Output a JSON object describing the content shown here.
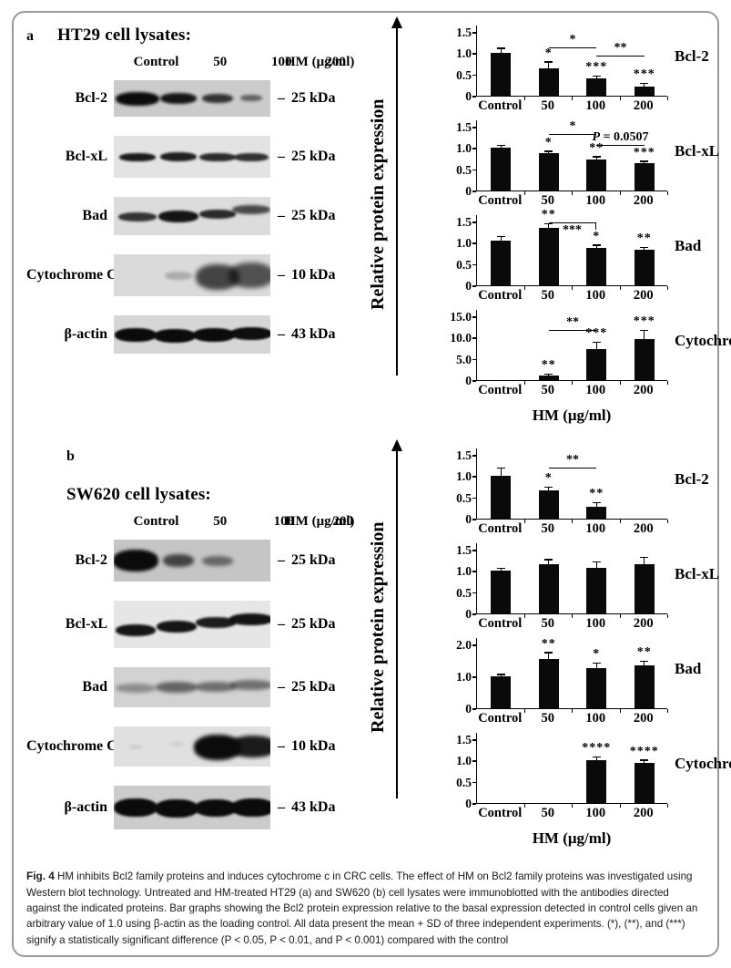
{
  "figure": {
    "caption_bold": "Fig. 4",
    "caption_text": " HM inhibits Bcl2 family proteins and induces cytochrome c in CRC cells. The effect of HM on Bcl2 family proteins was investigated using Western blot technology. Untreated and HM-treated HT29 (a) and SW620 (b) cell lysates were immunoblotted with the antibodies directed against the indicated proteins. Bar graphs showing the Bcl2 protein expression relative to the basal expression detected in control cells given an arbitrary value of 1.0 using β-actin as the loading control. All data present the mean + SD of three independent experiments. (*), (**), and (***) signify a statistically significant difference (P < 0.05, P < 0.01, and P < 0.001) compared with the control"
  },
  "panels": [
    {
      "letter": "a",
      "title": "HT29 cell lysates:",
      "lane_labels": [
        "Control",
        "50",
        "100",
        "200"
      ],
      "unit_label": "HM (μg/ml)",
      "ylabel": "Relative protein  expression",
      "xlabel": "HM (μg/ml)",
      "blots": [
        {
          "label": "Bcl-2",
          "kda": "25 kDa",
          "bg": "#cbcbcb",
          "h": 40,
          "bands": [
            {
              "x": 15,
              "w": 48,
              "h": 15,
              "o": 1.0,
              "blur": 1.5,
              "dy": 0
            },
            {
              "x": 41,
              "w": 40,
              "h": 12,
              "o": 0.95,
              "blur": 1.5,
              "dy": 0
            },
            {
              "x": 66,
              "w": 34,
              "h": 10,
              "o": 0.8,
              "blur": 1.5,
              "dy": 0
            },
            {
              "x": 88,
              "w": 24,
              "h": 7,
              "o": 0.55,
              "blur": 1.6,
              "dy": -1
            }
          ]
        },
        {
          "label": "Bcl-xL",
          "kda": "25 kDa",
          "bg": "#e3e3e3",
          "h": 46,
          "bands": [
            {
              "x": 15,
              "w": 40,
              "h": 9,
              "o": 0.92,
              "blur": 1.2,
              "dy": 0
            },
            {
              "x": 41,
              "w": 40,
              "h": 10,
              "o": 0.9,
              "blur": 1.2,
              "dy": 0
            },
            {
              "x": 66,
              "w": 40,
              "h": 9,
              "o": 0.85,
              "blur": 1.2,
              "dy": 0
            },
            {
              "x": 88,
              "w": 38,
              "h": 9,
              "o": 0.82,
              "blur": 1.2,
              "dy": 0
            }
          ]
        },
        {
          "label": "Bad",
          "kda": "25 kDa",
          "bg": "#dcdcdc",
          "h": 42,
          "bands": [
            {
              "x": 15,
              "w": 42,
              "h": 10,
              "o": 0.8,
              "blur": 1.4,
              "dy": 1
            },
            {
              "x": 41,
              "w": 44,
              "h": 13,
              "o": 0.95,
              "blur": 1.4,
              "dy": 0
            },
            {
              "x": 66,
              "w": 40,
              "h": 10,
              "o": 0.85,
              "blur": 1.4,
              "dy": -2
            },
            {
              "x": 88,
              "w": 42,
              "h": 10,
              "o": 0.7,
              "blur": 1.7,
              "dy": -7
            }
          ]
        },
        {
          "label": "Cytochrome C",
          "kda": "10 kDa",
          "bg": "#dadada",
          "h": 46,
          "bands": [
            {
              "x": 15,
              "w": 0,
              "h": 0,
              "o": 0,
              "blur": 0,
              "dy": 0
            },
            {
              "x": 41,
              "w": 30,
              "h": 9,
              "o": 0.22,
              "blur": 1.6,
              "dy": 0
            },
            {
              "x": 66,
              "w": 48,
              "h": 28,
              "o": 0.72,
              "blur": 2.6,
              "dy": 2
            },
            {
              "x": 88,
              "w": 50,
              "h": 28,
              "o": 0.66,
              "blur": 2.6,
              "dy": 0
            }
          ]
        },
        {
          "label": "β-actin",
          "kda": "43 kDa",
          "bg": "#d6d6d6",
          "h": 42,
          "bands": [
            {
              "x": 14,
              "w": 46,
              "h": 15,
              "o": 1.0,
              "blur": 1.0,
              "dy": 0
            },
            {
              "x": 39,
              "w": 46,
              "h": 15,
              "o": 1.0,
              "blur": 1.0,
              "dy": 1
            },
            {
              "x": 64,
              "w": 46,
              "h": 15,
              "o": 1.0,
              "blur": 1.0,
              "dy": 0
            },
            {
              "x": 88,
              "w": 46,
              "h": 14,
              "o": 0.98,
              "blur": 1.0,
              "dy": -1
            }
          ]
        }
      ]
    },
    {
      "letter": "b",
      "title": "SW620 cell lysates:",
      "lane_labels": [
        "Control",
        "50",
        "100",
        "200"
      ],
      "unit_label": "HM (μg/ml)",
      "ylabel": "Relative protein  expression",
      "xlabel": "HM (μg/ml)",
      "blots": [
        {
          "label": "Bcl-2",
          "kda": "25 kDa",
          "bg": "#c5c5c5",
          "h": 46,
          "bands": [
            {
              "x": 14,
              "w": 50,
              "h": 24,
              "o": 1.0,
              "blur": 1.8,
              "dy": 0
            },
            {
              "x": 41,
              "w": 34,
              "h": 14,
              "o": 0.7,
              "blur": 2.2,
              "dy": 0
            },
            {
              "x": 66,
              "w": 34,
              "h": 11,
              "o": 0.5,
              "blur": 2.2,
              "dy": 0
            },
            {
              "x": 88,
              "w": 0,
              "h": 0,
              "o": 0,
              "blur": 0,
              "dy": 0
            }
          ]
        },
        {
          "label": "Bcl-xL",
          "kda": "25 kDa",
          "bg": "#e6e6e6",
          "h": 52,
          "bands": [
            {
              "x": 14,
              "w": 44,
              "h": 13,
              "o": 0.95,
              "blur": 1.2,
              "dy": 6
            },
            {
              "x": 40,
              "w": 44,
              "h": 13,
              "o": 0.95,
              "blur": 1.2,
              "dy": 2
            },
            {
              "x": 65,
              "w": 44,
              "h": 12,
              "o": 0.92,
              "blur": 1.2,
              "dy": -2
            },
            {
              "x": 88,
              "w": 48,
              "h": 13,
              "o": 0.96,
              "blur": 1.2,
              "dy": -6
            }
          ]
        },
        {
          "label": "Bad",
          "kda": "25 kDa",
          "bg": "#d2d2d2",
          "h": 44,
          "bands": [
            {
              "x": 14,
              "w": 44,
              "h": 10,
              "o": 0.35,
              "blur": 2.0,
              "dy": 1
            },
            {
              "x": 40,
              "w": 46,
              "h": 12,
              "o": 0.55,
              "blur": 2.0,
              "dy": 0
            },
            {
              "x": 65,
              "w": 44,
              "h": 11,
              "o": 0.5,
              "blur": 2.0,
              "dy": -1
            },
            {
              "x": 88,
              "w": 46,
              "h": 11,
              "o": 0.5,
              "blur": 2.0,
              "dy": -3
            }
          ]
        },
        {
          "label": "Cytochrome C",
          "kda": "10 kDa",
          "bg": "#e0e0e0",
          "h": 44,
          "bands": [
            {
              "x": 14,
              "w": 16,
              "h": 5,
              "o": 0.08,
              "blur": 1.5,
              "dy": 0
            },
            {
              "x": 40,
              "w": 14,
              "h": 5,
              "o": 0.08,
              "blur": 1.5,
              "dy": -3
            },
            {
              "x": 66,
              "w": 52,
              "h": 28,
              "o": 1.0,
              "blur": 2.0,
              "dy": 1
            },
            {
              "x": 89,
              "w": 52,
              "h": 24,
              "o": 0.92,
              "blur": 2.0,
              "dy": 0
            }
          ]
        },
        {
          "label": "β-actin",
          "kda": "43 kDa",
          "bg": "#cccccc",
          "h": 48,
          "bands": [
            {
              "x": 14,
              "w": 48,
              "h": 20,
              "o": 1.0,
              "blur": 1.2,
              "dy": 0
            },
            {
              "x": 40,
              "w": 48,
              "h": 20,
              "o": 1.0,
              "blur": 1.2,
              "dy": 1
            },
            {
              "x": 65,
              "w": 46,
              "h": 19,
              "o": 1.0,
              "blur": 1.2,
              "dy": 0
            },
            {
              "x": 89,
              "w": 48,
              "h": 20,
              "o": 1.0,
              "blur": 1.2,
              "dy": 0
            }
          ]
        }
      ]
    }
  ],
  "chart_data": [
    {
      "panel": "a",
      "type": "bar",
      "protein": "Bcl-2",
      "ylabel": "Relative protein expression",
      "xlabel": "HM (μg/ml)",
      "categories": [
        "Control",
        "50",
        "100",
        "200"
      ],
      "ymax": 1.5,
      "yticks": [
        "1.5",
        "1.0",
        "0.5",
        "0"
      ],
      "values": [
        1.0,
        0.65,
        0.4,
        0.22
      ],
      "errors": [
        0.1,
        0.13,
        0.04,
        0.06
      ],
      "stars": [
        "",
        "*",
        "***",
        "***"
      ],
      "bridges": [
        {
          "from": 1,
          "to": 2,
          "label": "*",
          "level": 1.12
        },
        {
          "from": 2,
          "to": 3,
          "label": "**",
          "level": 0.92
        }
      ]
    },
    {
      "panel": "a",
      "type": "bar",
      "protein": "Bcl-xL",
      "ylabel": "Relative protein expression",
      "xlabel": "HM (μg/ml)",
      "categories": [
        "Control",
        "50",
        "100",
        "200"
      ],
      "ymax": 1.5,
      "yticks": [
        "1.5",
        "1.0",
        "0.5",
        "0"
      ],
      "values": [
        1.0,
        0.88,
        0.73,
        0.64
      ],
      "errors": [
        0.05,
        0.03,
        0.05,
        0.03
      ],
      "stars": [
        "",
        "*",
        "**",
        "***"
      ],
      "bridges": [
        {
          "from": 1,
          "to": 2,
          "label": "*",
          "level": 1.3
        },
        {
          "from": 2,
          "to": 3,
          "label": "P = 0.0507",
          "level": 1.06,
          "pItalic": true
        }
      ]
    },
    {
      "panel": "a",
      "type": "bar",
      "protein": "Bad",
      "ylabel": "Relative protein expression",
      "xlabel": "HM (μg/ml)",
      "categories": [
        "Control",
        "50",
        "100",
        "200"
      ],
      "ymax": 1.5,
      "yticks": [
        "1.5",
        "1.0",
        "0.5",
        "0"
      ],
      "values": [
        1.06,
        1.35,
        0.87,
        0.84
      ],
      "errors": [
        0.07,
        0.08,
        0.06,
        0.04
      ],
      "stars": [
        "",
        "**",
        "*",
        "**"
      ],
      "bridges": [
        {
          "from": 1,
          "to": 2,
          "label": "***",
          "level": 1.48,
          "labelBelow": true,
          "bracket": true
        }
      ]
    },
    {
      "panel": "a",
      "type": "bar",
      "protein": "Cytochrome c",
      "ylabel": "Relative protein expression",
      "xlabel": "HM (μg/ml)",
      "categories": [
        "Control",
        "50",
        "100",
        "200"
      ],
      "ymax": 15,
      "yticks": [
        "15.0",
        "10.0",
        "5.0",
        "0"
      ],
      "values": [
        0,
        1.0,
        7.2,
        9.6
      ],
      "errors": [
        0,
        0.3,
        1.5,
        1.9
      ],
      "stars": [
        "",
        "**",
        "***",
        "***"
      ],
      "bridges": [
        {
          "from": 1,
          "to": 2,
          "label": "**",
          "level": 11.6
        }
      ]
    },
    {
      "panel": "b",
      "type": "bar",
      "protein": "Bcl-2",
      "ylabel": "Relative protein expression",
      "xlabel": "HM (μg/ml)",
      "categories": [
        "Control",
        "50",
        "100",
        "200"
      ],
      "ymax": 1.5,
      "yticks": [
        "1.5",
        "1.0",
        "0.5",
        "0"
      ],
      "values": [
        1.0,
        0.67,
        0.27,
        0
      ],
      "errors": [
        0.18,
        0.06,
        0.09,
        0
      ],
      "stars": [
        "",
        "*",
        "**",
        ""
      ],
      "bridges": [
        {
          "from": 1,
          "to": 2,
          "label": "**",
          "level": 1.18
        }
      ]
    },
    {
      "panel": "b",
      "type": "bar",
      "protein": "Bcl-xL",
      "ylabel": "Relative protein expression",
      "xlabel": "HM (μg/ml)",
      "categories": [
        "Control",
        "50",
        "100",
        "200"
      ],
      "ymax": 1.5,
      "yticks": [
        "1.5",
        "1.0",
        "0.5",
        "0"
      ],
      "values": [
        1.0,
        1.15,
        1.08,
        1.15
      ],
      "errors": [
        0.04,
        0.1,
        0.12,
        0.15
      ],
      "stars": [
        "",
        "",
        "",
        ""
      ],
      "bridges": []
    },
    {
      "panel": "b",
      "type": "bar",
      "protein": "Bad",
      "ylabel": "Relative protein expression",
      "xlabel": "HM (μg/ml)",
      "categories": [
        "Control",
        "50",
        "100",
        "200"
      ],
      "ymax": 2.0,
      "yticks": [
        "2.0",
        "1.0",
        "0"
      ],
      "values": [
        1.01,
        1.55,
        1.27,
        1.35
      ],
      "errors": [
        0.03,
        0.17,
        0.12,
        0.1
      ],
      "stars": [
        "",
        "**",
        "*",
        "**"
      ],
      "bridges": []
    },
    {
      "panel": "b",
      "type": "bar",
      "protein": "Cytochrome c",
      "ylabel": "Relative protein expression",
      "xlabel": "HM (μg/ml)",
      "categories": [
        "Control",
        "50",
        "100",
        "200"
      ],
      "ymax": 1.5,
      "yticks": [
        "1.5",
        "1.0",
        "0.5",
        "0"
      ],
      "values": [
        0,
        0,
        1.0,
        0.95
      ],
      "errors": [
        0,
        0,
        0.07,
        0.04
      ],
      "stars": [
        "",
        "",
        "****",
        "****"
      ],
      "bridges": []
    }
  ]
}
